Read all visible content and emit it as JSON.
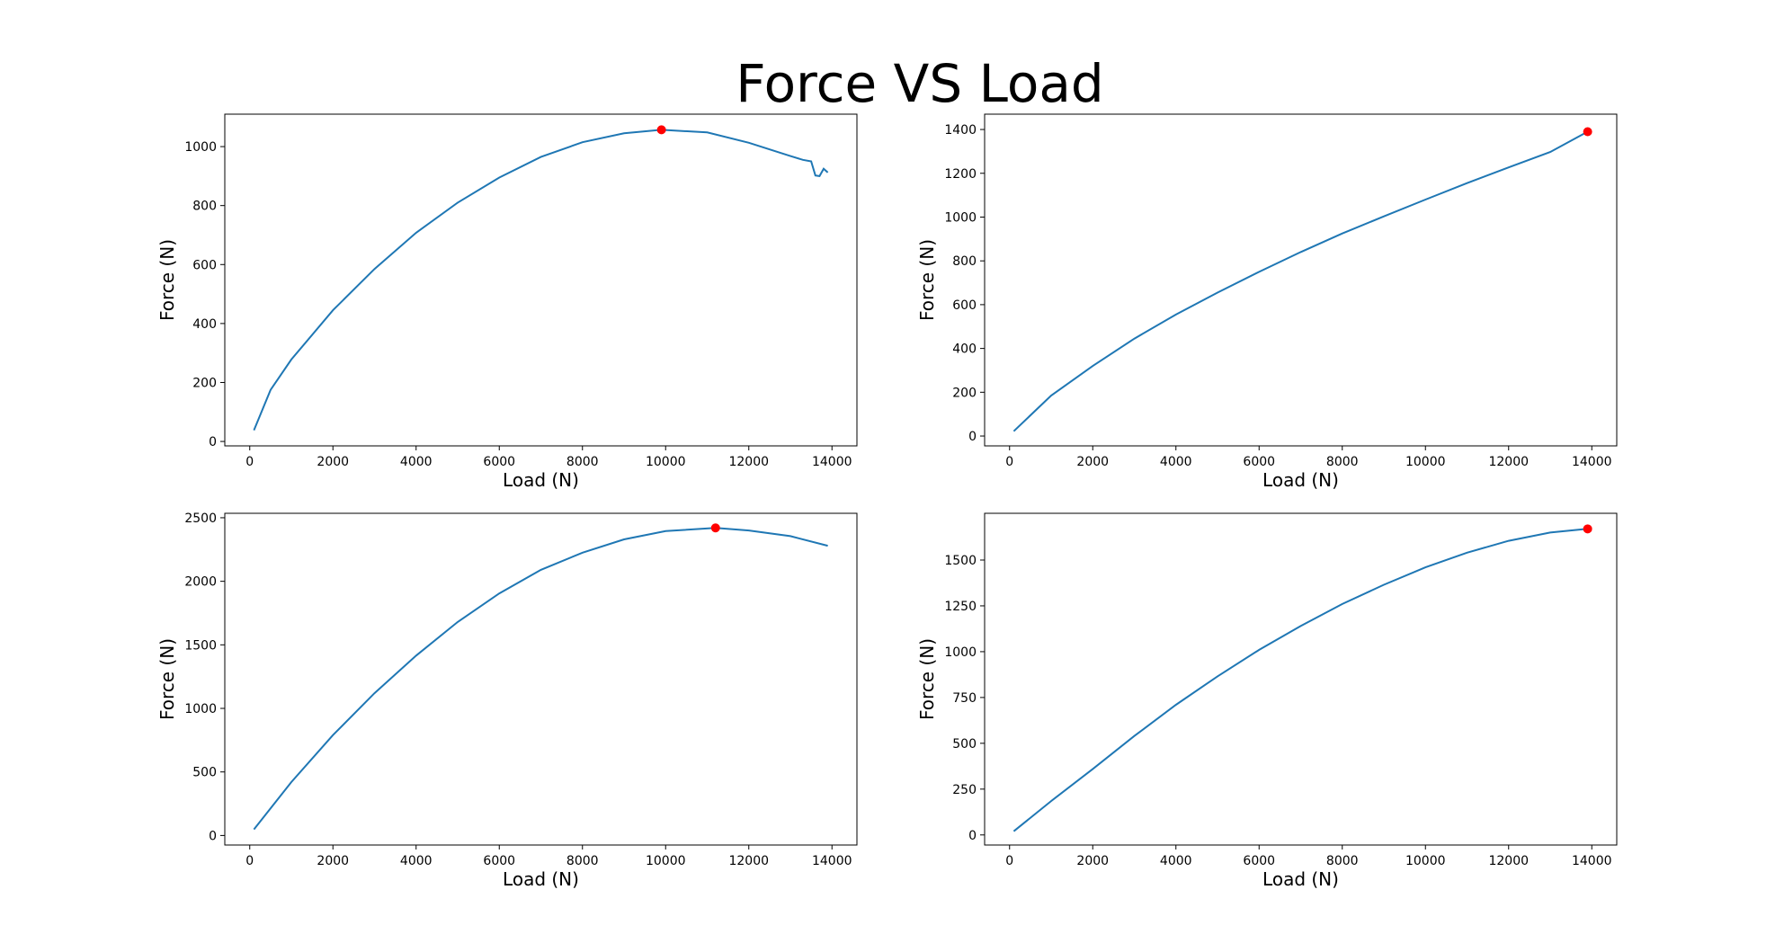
{
  "page": {
    "title": "Force VS Load"
  },
  "colors": {
    "line": "#1f77b4",
    "marker": "#ff0000",
    "axes": "#000000",
    "background": "#ffffff"
  },
  "chart_data": [
    {
      "type": "line",
      "title": "",
      "xlabel": "Load (N)",
      "ylabel": "Force (N)",
      "xlim": [
        -600,
        14600
      ],
      "ylim": [
        -15,
        1110
      ],
      "xticks": [
        0,
        2000,
        4000,
        6000,
        8000,
        10000,
        12000,
        14000
      ],
      "yticks": [
        0,
        200,
        400,
        600,
        800,
        1000
      ],
      "xtick_labels": [
        "0",
        "2000",
        "4000",
        "6000",
        "8000",
        "10000",
        "12000",
        "14000"
      ],
      "ytick_labels": [
        "0",
        "200",
        "400",
        "600",
        "800",
        "1000"
      ],
      "grid": false,
      "series": [
        {
          "x": [
            100,
            500,
            1000,
            2000,
            3000,
            4000,
            5000,
            6000,
            7000,
            8000,
            9000,
            9900,
            11000,
            12000,
            13000,
            13300,
            13500,
            13600,
            13700,
            13800,
            13900
          ],
          "y": [
            38,
            175,
            278,
            445,
            585,
            708,
            810,
            895,
            965,
            1015,
            1045,
            1057,
            1048,
            1013,
            968,
            955,
            950,
            902,
            900,
            925,
            912
          ]
        }
      ],
      "max_point": {
        "x": 9900,
        "y": 1057
      }
    },
    {
      "type": "line",
      "title": "",
      "xlabel": "Load (N)",
      "ylabel": "Force (N)",
      "xlim": [
        -600,
        14600
      ],
      "ylim": [
        -45,
        1470
      ],
      "xticks": [
        0,
        2000,
        4000,
        6000,
        8000,
        10000,
        12000,
        14000
      ],
      "yticks": [
        0,
        200,
        400,
        600,
        800,
        1000,
        1200,
        1400
      ],
      "xtick_labels": [
        "0",
        "2000",
        "4000",
        "6000",
        "8000",
        "10000",
        "12000",
        "14000"
      ],
      "ytick_labels": [
        "0",
        "200",
        "400",
        "600",
        "800",
        "1000",
        "1200",
        "1400"
      ],
      "grid": false,
      "series": [
        {
          "x": [
            100,
            1000,
            2000,
            3000,
            4000,
            5000,
            6000,
            7000,
            8000,
            9000,
            10000,
            11000,
            12000,
            13000,
            13900
          ],
          "y": [
            22,
            185,
            320,
            445,
            555,
            655,
            750,
            840,
            925,
            1003,
            1080,
            1155,
            1227,
            1297,
            1390
          ]
        }
      ],
      "max_point": {
        "x": 13900,
        "y": 1390
      }
    },
    {
      "type": "line",
      "title": "",
      "xlabel": "Load (N)",
      "ylabel": "Force (N)",
      "xlim": [
        -600,
        14600
      ],
      "ylim": [
        -75,
        2535
      ],
      "xticks": [
        0,
        2000,
        4000,
        6000,
        8000,
        10000,
        12000,
        14000
      ],
      "yticks": [
        0,
        500,
        1000,
        1500,
        2000,
        2500
      ],
      "xtick_labels": [
        "0",
        "2000",
        "4000",
        "6000",
        "8000",
        "10000",
        "12000",
        "14000"
      ],
      "ytick_labels": [
        "0",
        "500",
        "1000",
        "1500",
        "2000",
        "2500"
      ],
      "grid": false,
      "series": [
        {
          "x": [
            100,
            1000,
            2000,
            3000,
            4000,
            5000,
            6000,
            7000,
            8000,
            9000,
            10000,
            11200,
            12000,
            13000,
            13900
          ],
          "y": [
            48,
            420,
            790,
            1120,
            1415,
            1680,
            1905,
            2090,
            2225,
            2330,
            2395,
            2420,
            2400,
            2355,
            2280
          ]
        }
      ],
      "max_point": {
        "x": 11200,
        "y": 2420
      }
    },
    {
      "type": "line",
      "title": "",
      "xlabel": "Load (N)",
      "ylabel": "Force (N)",
      "xlim": [
        -600,
        14600
      ],
      "ylim": [
        -55,
        1755
      ],
      "xticks": [
        0,
        2000,
        4000,
        6000,
        8000,
        10000,
        12000,
        14000
      ],
      "yticks": [
        0,
        250,
        500,
        750,
        1000,
        1250,
        1500
      ],
      "xtick_labels": [
        "0",
        "2000",
        "4000",
        "6000",
        "8000",
        "10000",
        "12000",
        "14000"
      ],
      "ytick_labels": [
        "0",
        "250",
        "500",
        "750",
        "1000",
        "1250",
        "1500"
      ],
      "grid": false,
      "series": [
        {
          "x": [
            100,
            1000,
            2000,
            3000,
            4000,
            5000,
            6000,
            7000,
            8000,
            9000,
            10000,
            11000,
            12000,
            13000,
            13900
          ],
          "y": [
            20,
            185,
            360,
            540,
            710,
            865,
            1010,
            1140,
            1260,
            1365,
            1460,
            1540,
            1605,
            1650,
            1670
          ]
        }
      ],
      "max_point": {
        "x": 13900,
        "y": 1670
      }
    }
  ]
}
